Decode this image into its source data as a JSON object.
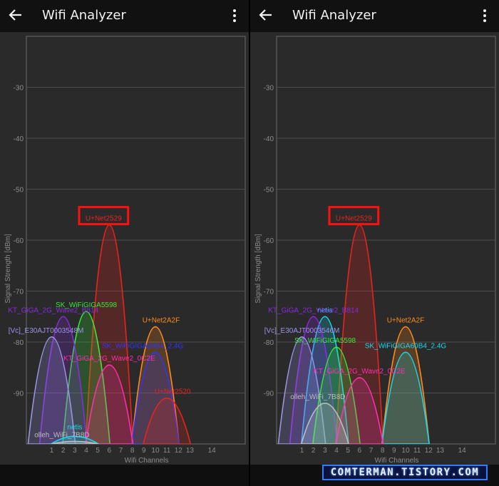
{
  "panels": [
    {
      "id": "left",
      "app_title": "Wifi Analyzer",
      "icons": {
        "back": "arrow-left-icon",
        "menu": "more-vertical-icon"
      },
      "chart_data": {
        "type": "area",
        "xlabel": "Wifi Channels",
        "ylabel": "Signal Strength [dBm]",
        "x_ticks": [
          1,
          2,
          3,
          4,
          5,
          6,
          7,
          8,
          9,
          10,
          11,
          12,
          13,
          14
        ],
        "y_ticks": [
          -30,
          -40,
          -50,
          -60,
          -70,
          -80,
          -90
        ],
        "xlim": [
          -1.2,
          17.8
        ],
        "ylim": [
          -100,
          -20
        ],
        "grid": true,
        "highlight": "U+Net2529",
        "networks": [
          {
            "name": "U+Net2529",
            "channel": 6,
            "signal": -57,
            "color": "#e8241c"
          },
          {
            "name": "SK_WiFiGIGA5598",
            "channel": 4,
            "signal": -74,
            "color": "#39e83a"
          },
          {
            "name": "KT_GiGA_2G_Wave2_B814",
            "channel": 2,
            "signal": -75,
            "color": "#8a2be2"
          },
          {
            "name": "[Vc]_E30AJT0003548M",
            "channel": 1,
            "signal": -79,
            "color": "#9b95e6"
          },
          {
            "name": "U+Net2A2F",
            "channel": 10,
            "signal": -77,
            "color": "#ff8a1c"
          },
          {
            "name": "SK_WiFiGIGA60B4_2.4G",
            "channel": 10,
            "signal": -82,
            "color": "#2f35ff"
          },
          {
            "name": "KT_GiGA_2G_Wave2_0C2E",
            "channel": 6,
            "signal": -84.5,
            "color": "#ff2fb0"
          },
          {
            "name": "U+Net2520",
            "channel": 11,
            "signal": -91,
            "color": "#e8241c"
          },
          {
            "name": "netis",
            "channel": 3,
            "signal": -98.5,
            "color": "#19d7f0"
          },
          {
            "name": "olleh_WiFi_7B8D",
            "channel": 3,
            "signal": -99.5,
            "color": "#bdbdbd"
          }
        ]
      }
    },
    {
      "id": "right",
      "app_title": "Wifi Analyzer",
      "icons": {
        "back": "arrow-left-icon",
        "menu": "more-vertical-icon"
      },
      "chart_data": {
        "type": "area",
        "xlabel": "Wifi Channels",
        "ylabel": "Signal Strength [dBm]",
        "x_ticks": [
          1,
          2,
          3,
          4,
          5,
          6,
          7,
          8,
          9,
          10,
          11,
          12,
          13,
          14
        ],
        "y_ticks": [
          -30,
          -40,
          -50,
          -60,
          -70,
          -80,
          -90
        ],
        "xlim": [
          -1.2,
          17.8
        ],
        "ylim": [
          -100,
          -20
        ],
        "grid": true,
        "highlight": "U+Net2529",
        "networks": [
          {
            "name": "U+Net2529",
            "channel": 6,
            "signal": -57,
            "color": "#e8241c"
          },
          {
            "name": "netis",
            "channel": 3,
            "signal": -75,
            "color": "#19d7f0"
          },
          {
            "name": "KT_GiGA_2G_Wave2_B814",
            "channel": 2,
            "signal": -75,
            "color": "#8a2be2"
          },
          {
            "name": "[Vc]_E30AJT0003546M",
            "channel": 1,
            "signal": -79,
            "color": "#9b95e6"
          },
          {
            "name": "SK_WiFiGIGA5598",
            "channel": 4,
            "signal": -81,
            "color": "#39e83a"
          },
          {
            "name": "U+Net2A2F",
            "channel": 10,
            "signal": -77,
            "color": "#ff8a1c"
          },
          {
            "name": "SK_WiFiGIGA60B4_2.4G",
            "channel": 10,
            "signal": -82,
            "color": "#19d7f0"
          },
          {
            "name": "KT_GiGA_2G_Wave2_0C2E",
            "channel": 6,
            "signal": -87,
            "color": "#ff2fb0"
          },
          {
            "name": "olleh_WiFi_7B8D",
            "channel": 3,
            "signal": -92,
            "color": "#bdbdbd"
          }
        ]
      }
    }
  ],
  "watermark": "COMTERMAN.TISTORY.COM"
}
